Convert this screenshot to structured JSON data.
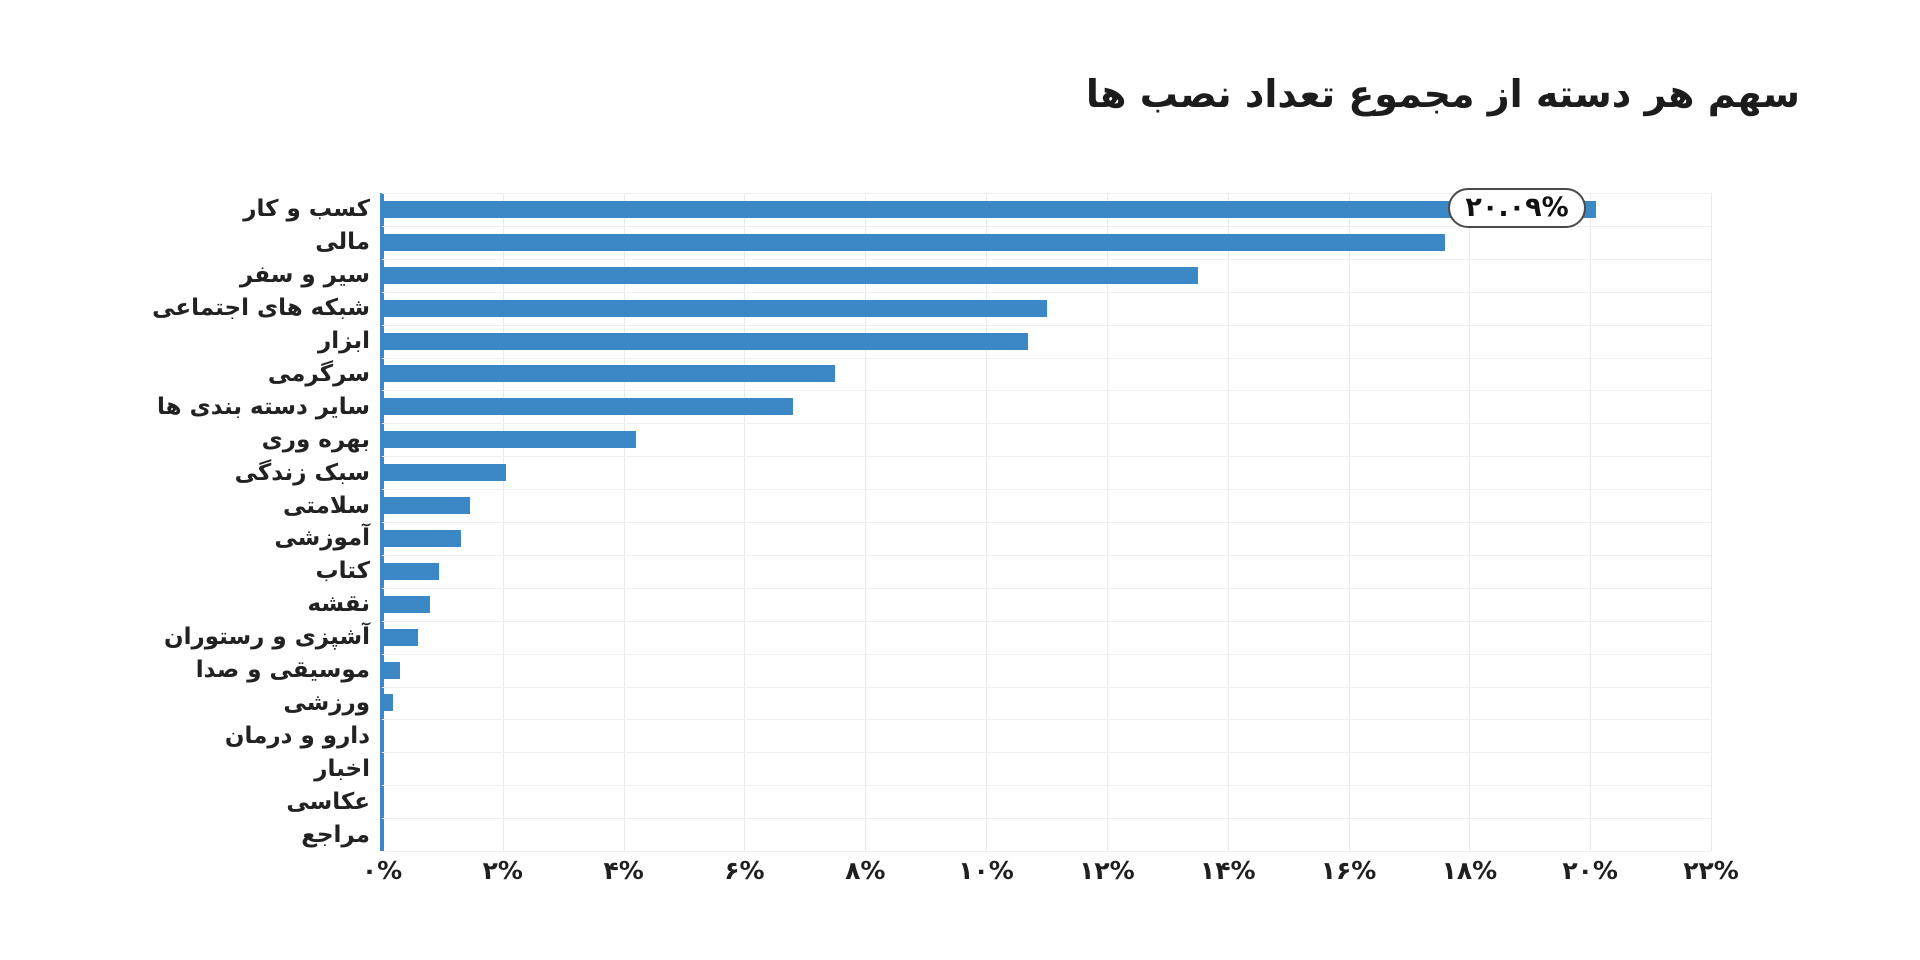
{
  "title": "سهم هر دسته از مجموع تعداد نصب ها",
  "colors": {
    "background": "#ffffff",
    "bar": "#3c87c6",
    "axis_line": "#3c87c6",
    "vertical_grid": "#e9e9e9",
    "horizontal_grid": "#f1efee",
    "title_text": "#1c1c1c",
    "label_text": "#222222",
    "callout_border": "#4a4a4a",
    "callout_background": "#ffffff"
  },
  "chart_data": {
    "type": "bar",
    "orientation": "horizontal",
    "title": "سهم هر دسته از مجموع تعداد نصب ها",
    "categories": [
      "کسب و کار",
      "مالی",
      "سیر و سفر",
      "شبکه های اجتماعی",
      "ابزار",
      "سرگرمی",
      "سایر دسته بندی ها",
      "بهره وری",
      "سبک زندگی",
      "سلامتی",
      "آموزشی",
      "کتاب",
      "نقشه",
      "آشپزی و رستوران",
      "موسیقی و صدا",
      "ورزشی",
      "دارو و درمان",
      "اخبار",
      "عکاسی",
      "مراجع"
    ],
    "values": [
      20.09,
      17.6,
      13.5,
      11.0,
      10.7,
      7.5,
      6.8,
      4.2,
      2.05,
      1.45,
      1.3,
      0.95,
      0.8,
      0.6,
      0.3,
      0.18,
      0.02,
      0.02,
      0.01,
      0.01
    ],
    "unit": "%",
    "xlim": [
      0,
      22
    ],
    "x_tick_values": [
      0,
      2,
      4,
      6,
      8,
      10,
      12,
      14,
      16,
      18,
      20,
      22
    ],
    "x_ticks": [
      "۰%",
      "۲%",
      "۴%",
      "۶%",
      "۸%",
      "۱۰%",
      "۱۲%",
      "۱۴%",
      "۱۶%",
      "۱۸%",
      "۲۰%",
      "۲۲%"
    ],
    "grid": true,
    "legend": false,
    "annotation": {
      "text": "۲۰.۰۹%",
      "value": 20.09,
      "category": "کسب و کار",
      "category_index": 0
    }
  }
}
